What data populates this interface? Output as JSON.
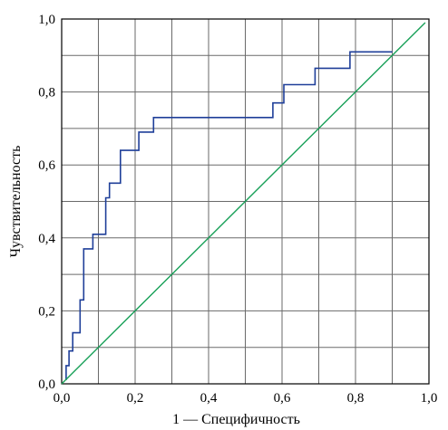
{
  "chart_data": {
    "type": "line",
    "title": "",
    "xlabel": "1 — Специфичность",
    "ylabel": "Чувствительность",
    "xlim": [
      0,
      1
    ],
    "ylim": [
      0,
      1
    ],
    "grid": true,
    "x_ticks": [
      {
        "value": 0.0,
        "label": "0,0"
      },
      {
        "value": 0.2,
        "label": "0,2"
      },
      {
        "value": 0.4,
        "label": "0,4"
      },
      {
        "value": 0.6,
        "label": "0,6"
      },
      {
        "value": 0.8,
        "label": "0,8"
      },
      {
        "value": 1.0,
        "label": "1,0"
      }
    ],
    "y_ticks": [
      {
        "value": 0.0,
        "label": "0,0"
      },
      {
        "value": 0.2,
        "label": "0,2"
      },
      {
        "value": 0.4,
        "label": "0,4"
      },
      {
        "value": 0.6,
        "label": "0,6"
      },
      {
        "value": 0.8,
        "label": "0,8"
      },
      {
        "value": 1.0,
        "label": "1,0"
      }
    ],
    "series": [
      {
        "color": "#1f3f99",
        "style": "step",
        "x": [
          0.012,
          0.012,
          0.02,
          0.02,
          0.03,
          0.03,
          0.05,
          0.05,
          0.06,
          0.06,
          0.085,
          0.085,
          0.12,
          0.12,
          0.13,
          0.13,
          0.16,
          0.16,
          0.21,
          0.21,
          0.25,
          0.25,
          0.295,
          0.295,
          0.575,
          0.575,
          0.605,
          0.605,
          0.69,
          0.69,
          0.785,
          0.785,
          0.9
        ],
        "y": [
          0.01,
          0.05,
          0.05,
          0.09,
          0.09,
          0.14,
          0.14,
          0.23,
          0.23,
          0.37,
          0.37,
          0.41,
          0.41,
          0.51,
          0.51,
          0.55,
          0.55,
          0.64,
          0.64,
          0.69,
          0.69,
          0.73,
          0.73,
          0.73,
          0.73,
          0.77,
          0.77,
          0.82,
          0.82,
          0.865,
          0.865,
          0.91,
          0.91
        ]
      },
      {
        "color": "#18a058",
        "style": "line",
        "x": [
          0,
          0.99
        ],
        "y": [
          0,
          0.99
        ]
      }
    ]
  }
}
